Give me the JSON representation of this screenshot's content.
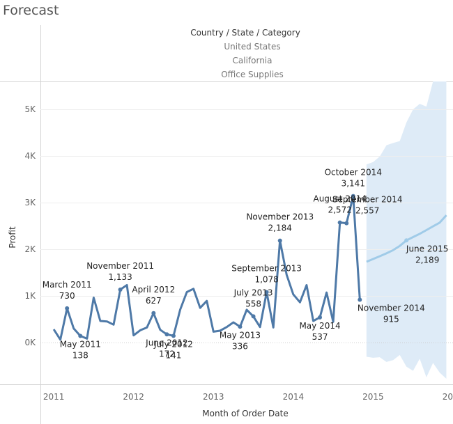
{
  "title": "Forecast",
  "header": {
    "field_label": "Country / State / Category",
    "values": [
      "United States",
      "California",
      "Office Supplies"
    ]
  },
  "colors": {
    "actual": "#4e79a7",
    "forecast": "#a0cbe8",
    "band": "#deebf7",
    "grid": "#eeeeee",
    "zero_line": "#cccccc",
    "text": "#333333",
    "border": "#d4d4d4"
  },
  "chart_data": {
    "type": "line",
    "title": "Forecast",
    "xlabel": "Month of Order Date",
    "ylabel": "Profit",
    "ylim": [
      -900,
      5600
    ],
    "xlim": [
      "2010-11",
      "2016-01"
    ],
    "y_ticks": [
      0,
      1000,
      2000,
      3000,
      4000,
      5000
    ],
    "y_tick_labels": [
      "0K",
      "1K",
      "2K",
      "3K",
      "4K",
      "5K"
    ],
    "x_ticks": [
      "2011-01",
      "2012-01",
      "2013-01",
      "2014-01",
      "2015-01",
      "2016-01"
    ],
    "x_tick_labels": [
      "2011",
      "2012",
      "2013",
      "2014",
      "2015",
      "20"
    ],
    "grid": "horizontal",
    "series": [
      {
        "kind": "actual",
        "x": [
          "2011-01",
          "2011-02",
          "2011-03",
          "2011-04",
          "2011-05",
          "2011-06",
          "2011-07",
          "2011-08",
          "2011-09",
          "2011-10",
          "2011-11",
          "2011-12",
          "2012-01",
          "2012-02",
          "2012-03",
          "2012-04",
          "2012-05",
          "2012-06",
          "2012-07",
          "2012-08",
          "2012-09",
          "2012-10",
          "2012-11",
          "2012-12",
          "2013-01",
          "2013-02",
          "2013-03",
          "2013-04",
          "2013-05",
          "2013-06",
          "2013-07",
          "2013-08",
          "2013-09",
          "2013-10",
          "2013-11",
          "2013-12",
          "2014-01",
          "2014-02",
          "2014-03",
          "2014-04",
          "2014-05",
          "2014-06",
          "2014-07",
          "2014-08",
          "2014-09",
          "2014-10",
          "2014-11"
        ],
        "y": [
          280,
          60,
          730,
          300,
          138,
          80,
          960,
          460,
          450,
          380,
          1133,
          1230,
          150,
          260,
          320,
          627,
          270,
          172,
          141,
          700,
          1080,
          1150,
          740,
          890,
          230,
          250,
          330,
          430,
          336,
          700,
          558,
          330,
          1078,
          320,
          2184,
          1450,
          1030,
          860,
          1230,
          460,
          537,
          1070,
          440,
          2572,
          2557,
          3141,
          915
        ]
      },
      {
        "kind": "forecast",
        "x": [
          "2014-12",
          "2015-01",
          "2015-02",
          "2015-03",
          "2015-04",
          "2015-05",
          "2015-06",
          "2015-07",
          "2015-08",
          "2015-09",
          "2015-10",
          "2015-11",
          "2015-12"
        ],
        "y": [
          1730,
          1790,
          1850,
          1910,
          1980,
          2070,
          2189,
          2260,
          2330,
          2410,
          2490,
          2570,
          2730
        ],
        "band_upper": [
          3820,
          3870,
          3990,
          4230,
          4280,
          4320,
          4720,
          5000,
          5120,
          5060,
          5600,
          5600,
          5600
        ],
        "band_lower": [
          -310,
          -330,
          -320,
          -420,
          -380,
          -270,
          -520,
          -610,
          -350,
          -750,
          -440,
          -650,
          -780
        ]
      }
    ],
    "data_labels": [
      {
        "x": "2011-03",
        "y": 730,
        "date": "March 2011",
        "value": "730",
        "pos": "above"
      },
      {
        "x": "2011-05",
        "y": 138,
        "date": "May 2011",
        "value": "138",
        "pos": "below"
      },
      {
        "x": "2011-11",
        "y": 1133,
        "date": "November 2011",
        "value": "1,133",
        "pos": "above"
      },
      {
        "x": "2012-04",
        "y": 627,
        "date": "April 2012",
        "value": "627",
        "pos": "above"
      },
      {
        "x": "2012-06",
        "y": 172,
        "date": "June 2012",
        "value": "172",
        "pos": "below"
      },
      {
        "x": "2012-07",
        "y": 141,
        "date": "July 2012",
        "value": "141",
        "pos": "below"
      },
      {
        "x": "2013-05",
        "y": 336,
        "date": "May 2013",
        "value": "336",
        "pos": "below"
      },
      {
        "x": "2013-07",
        "y": 558,
        "date": "July 2013",
        "value": "558",
        "pos": "above"
      },
      {
        "x": "2013-09",
        "y": 1078,
        "date": "September 2013",
        "value": "1,078",
        "pos": "above"
      },
      {
        "x": "2013-11",
        "y": 2184,
        "date": "November 2013",
        "value": "2,184",
        "pos": "above"
      },
      {
        "x": "2014-05",
        "y": 537,
        "date": "May 2014",
        "value": "537",
        "pos": "below"
      },
      {
        "x": "2014-08",
        "y": 2572,
        "date": "August 2014",
        "value": "2,572",
        "pos": "above"
      },
      {
        "x": "2014-09",
        "y": 2557,
        "date": "September 2014",
        "value": "2,557",
        "pos": "above-right"
      },
      {
        "x": "2014-10",
        "y": 3141,
        "date": "October 2014",
        "value": "3,141",
        "pos": "above"
      },
      {
        "x": "2014-11",
        "y": 915,
        "date": "November 2014",
        "value": "915",
        "pos": "below-right"
      },
      {
        "x": "2015-06",
        "y": 2189,
        "date": "June 2015",
        "value": "2,189",
        "pos": "right-below"
      }
    ]
  }
}
